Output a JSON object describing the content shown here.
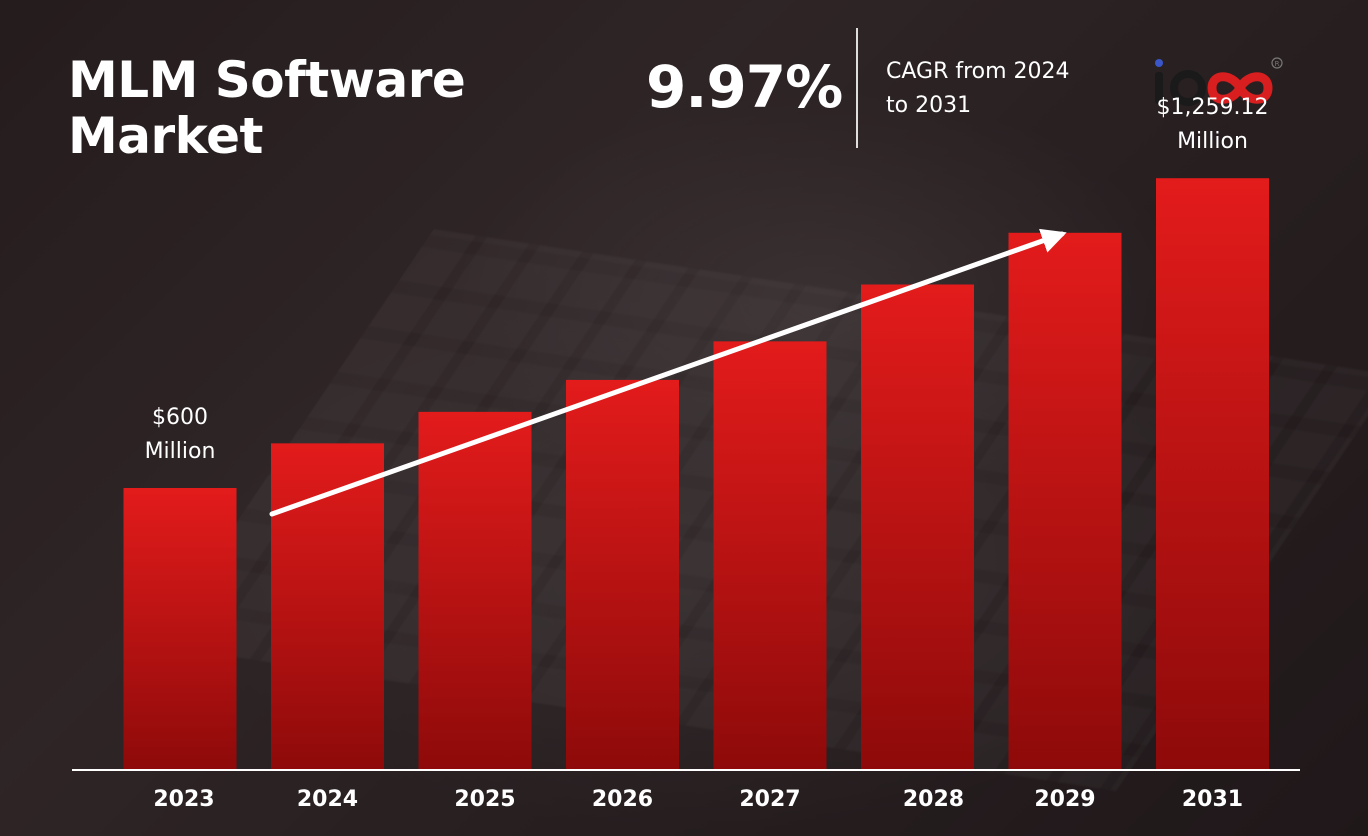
{
  "title": "MLM Software Market",
  "stat": {
    "value": "9.97%",
    "caption": "CAGR from 2024 to 2031"
  },
  "logo": {
    "text": "io",
    "registered": "R"
  },
  "colors": {
    "bar_top": "#e31b1b",
    "bar_bottom": "#8e0a0a",
    "text": "#ffffff"
  },
  "chart_data": {
    "type": "bar",
    "title": "MLM Software Market",
    "xlabel": "",
    "ylabel": "",
    "categories": [
      "2023",
      "2024",
      "2025",
      "2026",
      "2027",
      "2028",
      "2029",
      "2031"
    ],
    "values": [
      600,
      695,
      762,
      830,
      912,
      1033,
      1143,
      1259.12
    ],
    "ylim": [
      0,
      1400
    ],
    "unit": "$ Million",
    "data_labels": [
      {
        "index": 0,
        "lines": [
          "$600",
          "Million"
        ]
      },
      {
        "index": 7,
        "lines": [
          "$1,259.12",
          "Million"
        ]
      }
    ],
    "grid": false,
    "legend": "none",
    "trend_arrow": true
  }
}
